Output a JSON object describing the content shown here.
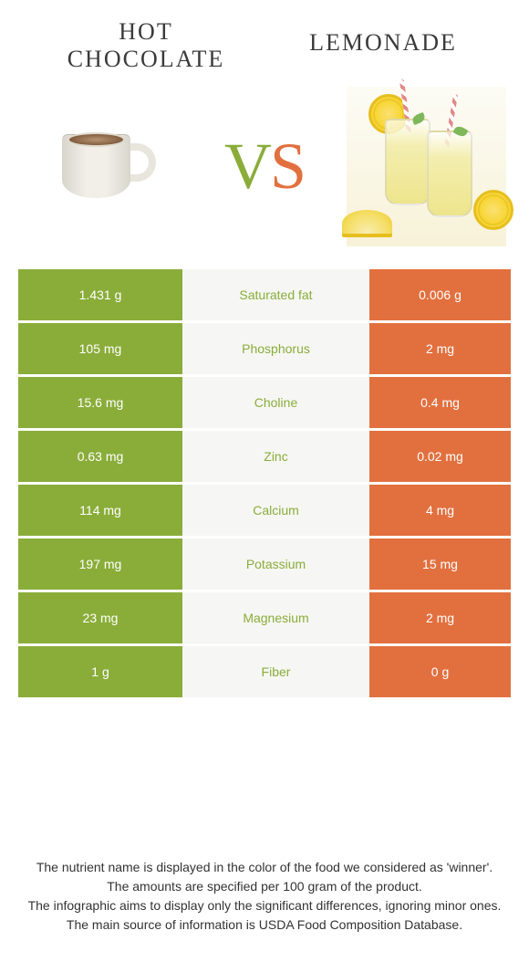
{
  "header": {
    "left_title": "Hot chocolate",
    "right_title": "Lemonade",
    "vs_v": "V",
    "vs_s": "S"
  },
  "colors": {
    "left": "#8aad3a",
    "right": "#e2703f",
    "mid_bg": "#f6f6f4",
    "nutrient_left_color": "#8aad3a",
    "nutrient_right_color": "#e2703f"
  },
  "rows": [
    {
      "left": "1.431 g",
      "nutrient": "Saturated fat",
      "winner": "left",
      "right": "0.006 g"
    },
    {
      "left": "105 mg",
      "nutrient": "Phosphorus",
      "winner": "left",
      "right": "2 mg"
    },
    {
      "left": "15.6 mg",
      "nutrient": "Choline",
      "winner": "left",
      "right": "0.4 mg"
    },
    {
      "left": "0.63 mg",
      "nutrient": "Zinc",
      "winner": "left",
      "right": "0.02 mg"
    },
    {
      "left": "114 mg",
      "nutrient": "Calcium",
      "winner": "left",
      "right": "4 mg"
    },
    {
      "left": "197 mg",
      "nutrient": "Potassium",
      "winner": "left",
      "right": "15 mg"
    },
    {
      "left": "23 mg",
      "nutrient": "Magnesium",
      "winner": "left",
      "right": "2 mg"
    },
    {
      "left": "1 g",
      "nutrient": "Fiber",
      "winner": "left",
      "right": "0 g"
    }
  ],
  "footer": {
    "line1": "The nutrient name is displayed in the color of the food we considered as 'winner'.",
    "line2": "The amounts are specified per 100 gram of the product.",
    "line3": "The infographic aims to display only the significant differences, ignoring minor ones.",
    "line4": "The main source of information is USDA Food Composition Database."
  }
}
